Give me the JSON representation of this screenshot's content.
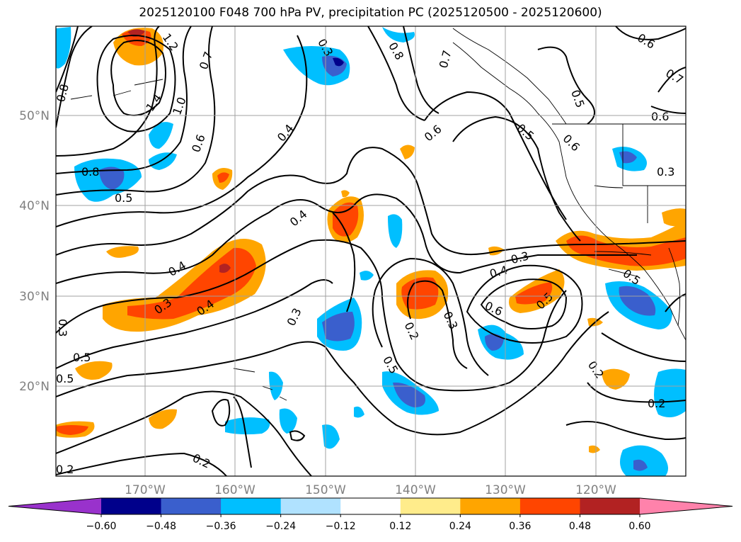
{
  "title": "2025120100 F048 700 hPa PV, precipitation PC (2025120500 - 2025120600)",
  "map": {
    "lat_labels": [
      "50°N",
      "40°N",
      "30°N",
      "20°N"
    ],
    "lon_labels": [
      "170°W",
      "160°W",
      "150°W",
      "140°W",
      "130°W",
      "120°W"
    ]
  },
  "contour_labels": [
    {
      "text": "1.2"
    },
    {
      "text": "0.7"
    },
    {
      "text": "1.4"
    },
    {
      "text": "1.0"
    },
    {
      "text": "0.8"
    },
    {
      "text": "0.5"
    },
    {
      "text": "0.6"
    },
    {
      "text": "0.4"
    },
    {
      "text": "0.3"
    },
    {
      "text": "0.8"
    },
    {
      "text": "0.7"
    },
    {
      "text": "0.6"
    },
    {
      "text": "0.5"
    },
    {
      "text": "0.6"
    },
    {
      "text": "0.4"
    },
    {
      "text": "0.4"
    },
    {
      "text": "0.3"
    },
    {
      "text": "0.4"
    },
    {
      "text": "0.3"
    },
    {
      "text": "0.2"
    },
    {
      "text": "0.3"
    },
    {
      "text": "0.5"
    },
    {
      "text": "0.3"
    },
    {
      "text": "0.4"
    },
    {
      "text": "0.6"
    },
    {
      "text": "0.5"
    },
    {
      "text": "0.5"
    },
    {
      "text": "0.2"
    },
    {
      "text": "0.2"
    },
    {
      "text": "0.2"
    },
    {
      "text": "0.2"
    },
    {
      "text": "0.5"
    },
    {
      "text": "0.7"
    },
    {
      "text": "0.6"
    },
    {
      "text": "0.6"
    },
    {
      "text": "0.5"
    },
    {
      "text": "0.3"
    },
    {
      "text": "0.3"
    },
    {
      "text": "0.5"
    },
    {
      "text": "0.8"
    }
  ],
  "colorbar": {
    "ticks": [
      "−0.60",
      "−0.48",
      "−0.36",
      "−0.24",
      "−0.12",
      "0.12",
      "0.24",
      "0.36",
      "0.48",
      "0.60"
    ],
    "colors": [
      "#9932cc",
      "#00008b",
      "#3a5fcd",
      "#00bfff",
      "#b0e2ff",
      "#ffffff",
      "#ffec8b",
      "#ffa500",
      "#ff4500",
      "#b22222",
      "#ff82ab"
    ]
  },
  "colors": {
    "orange": "#ffa500",
    "red_orange": "#ff4500",
    "dark_red": "#b22222",
    "light_blue": "#00bfff",
    "mid_blue": "#3a5fcd",
    "navy": "#00008b"
  }
}
